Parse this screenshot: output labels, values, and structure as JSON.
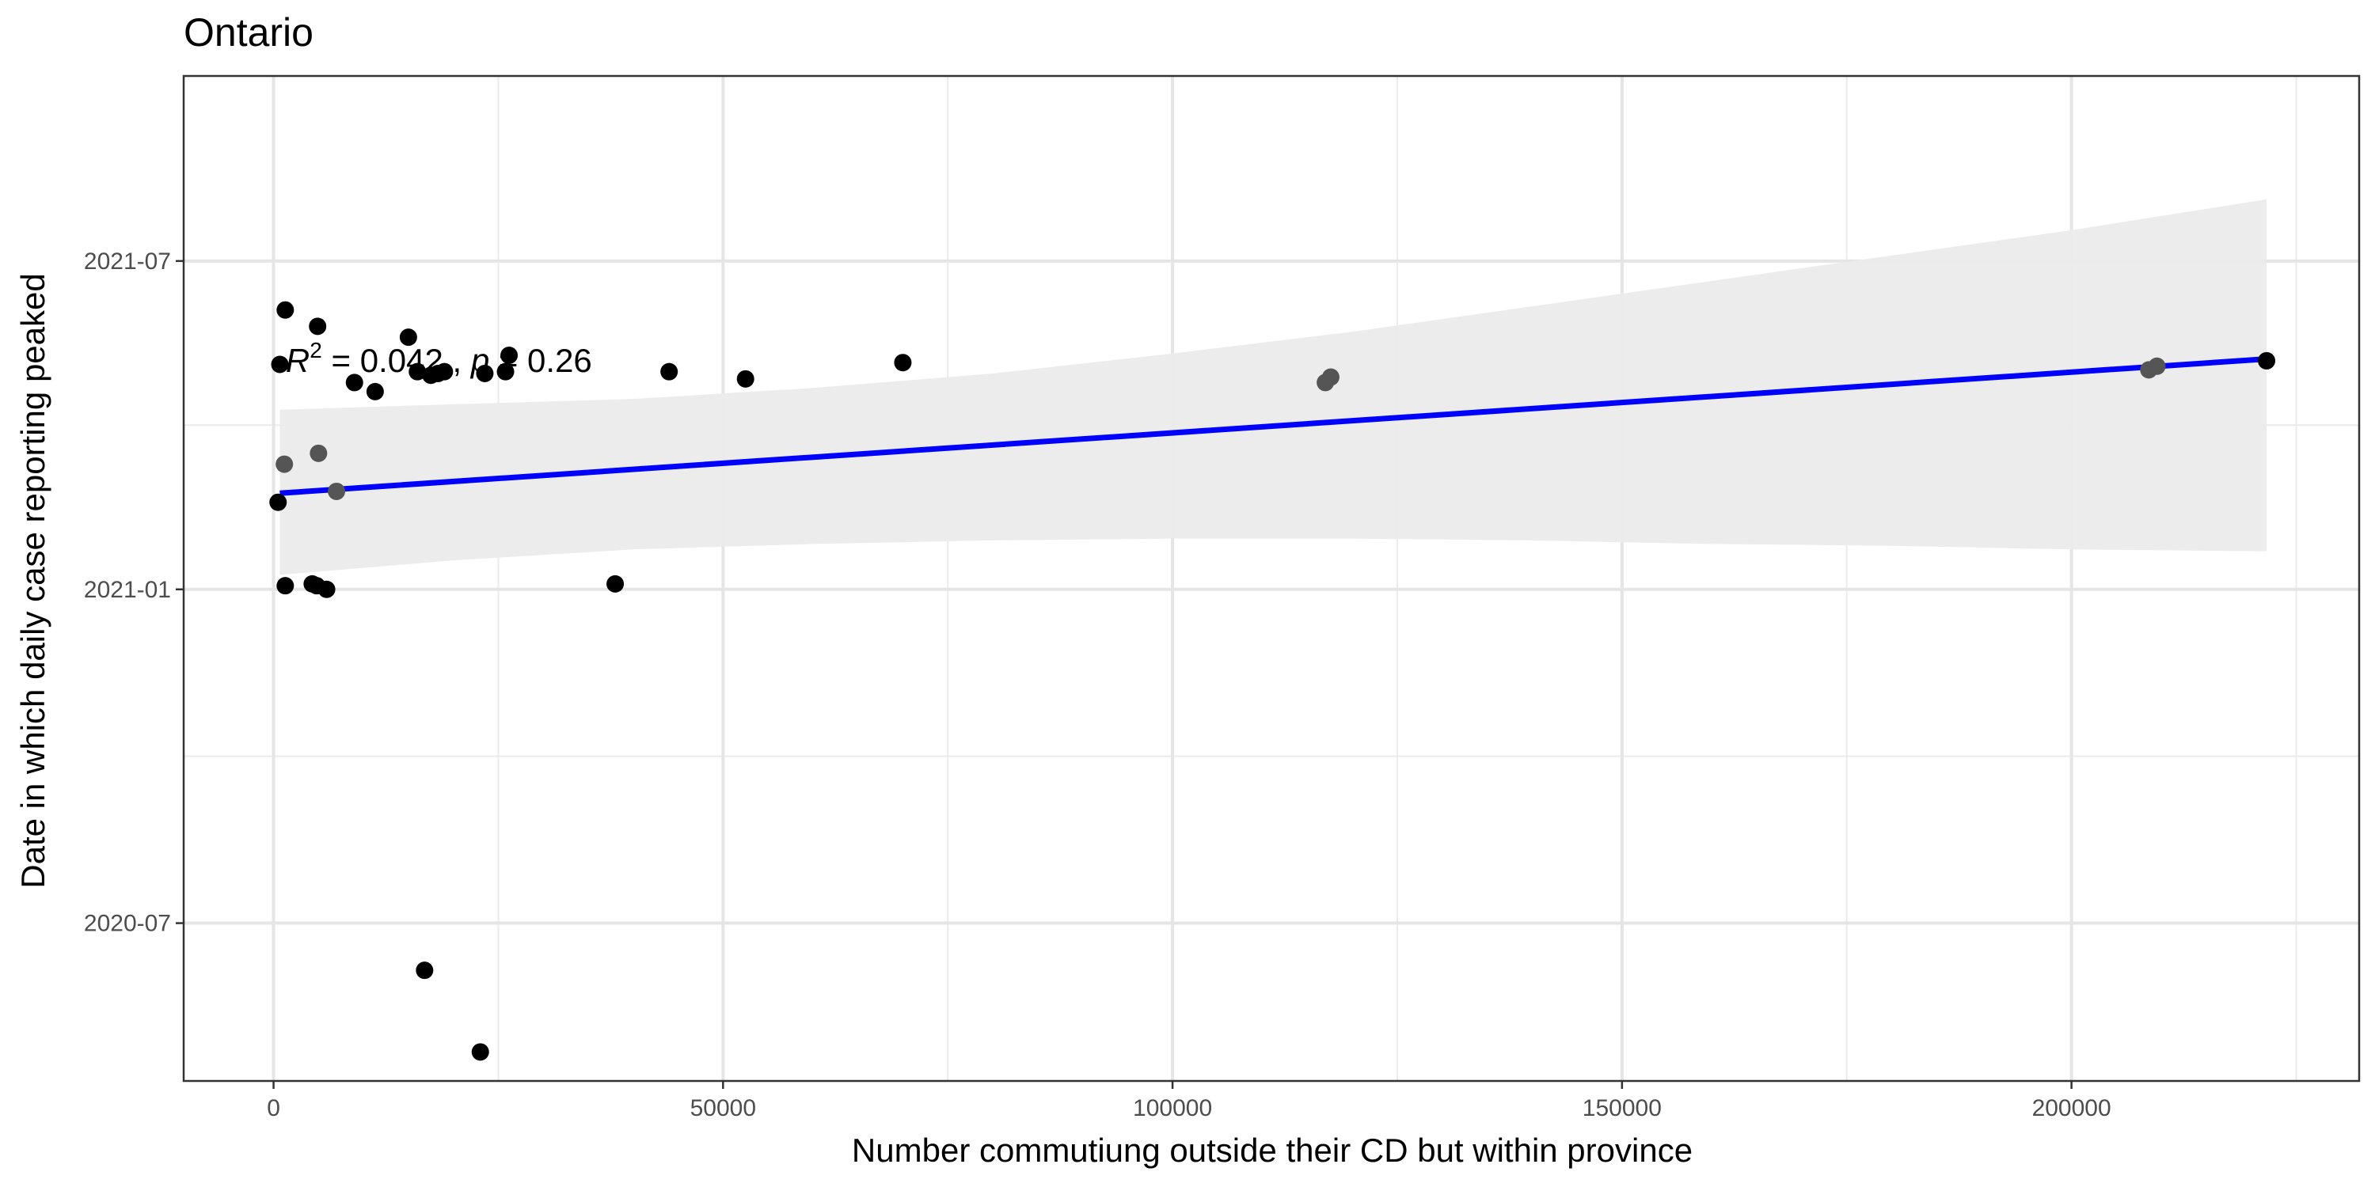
{
  "chart_data": {
    "type": "scatter",
    "title": "Ontario",
    "xlabel": "Number commutiung outside their CD but within province",
    "ylabel": "Date in which daily case reporting peaked",
    "x_range": [
      -10000,
      232000
    ],
    "y_range": [
      "2020-04-05",
      "2021-10-11"
    ],
    "x_ticks": [
      0,
      50000,
      100000,
      150000,
      200000
    ],
    "y_ticks": [
      "2020-07",
      "2021-01",
      "2021-07"
    ],
    "grid": true,
    "annotation": {
      "r2_label": "R",
      "r2_sup": "2",
      "r2_text": " = 0.042 , ",
      "p_label": "p",
      "p_text": " = 0.26",
      "x": 1000,
      "y": "2021-05-07"
    },
    "fit_line": {
      "color": "#0000ff",
      "x": [
        700,
        221700
      ],
      "y": [
        "2021-02-23",
        "2021-05-08"
      ]
    },
    "confidence_band": {
      "color": "#ebebeb",
      "x": [
        700,
        20000,
        40000,
        60000,
        80000,
        100000,
        120000,
        140000,
        160000,
        180000,
        200000,
        221700
      ],
      "upper": [
        "2021-04-10",
        "2021-04-13",
        "2021-04-16",
        "2021-04-22",
        "2021-04-30",
        "2021-05-11",
        "2021-05-23",
        "2021-06-06",
        "2021-06-20",
        "2021-07-04",
        "2021-07-18",
        "2021-08-04"
      ],
      "lower": [
        "2021-01-09",
        "2021-01-17",
        "2021-01-23",
        "2021-01-26",
        "2021-01-28",
        "2021-01-29",
        "2021-01-29",
        "2021-01-28",
        "2021-01-26",
        "2021-01-25",
        "2021-01-23",
        "2021-01-22"
      ]
    },
    "points": [
      {
        "x": 500,
        "y": "2021-02-18",
        "color": "#000000"
      },
      {
        "x": 700,
        "y": "2021-05-05",
        "color": "#000000"
      },
      {
        "x": 1200,
        "y": "2021-03-11",
        "color": "#555555"
      },
      {
        "x": 1300,
        "y": "2021-01-03",
        "color": "#000000"
      },
      {
        "x": 1300,
        "y": "2021-06-04",
        "color": "#000000"
      },
      {
        "x": 4300,
        "y": "2021-01-04",
        "color": "#000000"
      },
      {
        "x": 4800,
        "y": "2021-01-03",
        "color": "#000000"
      },
      {
        "x": 4900,
        "y": "2021-05-26",
        "color": "#000000"
      },
      {
        "x": 5000,
        "y": "2021-03-17",
        "color": "#555555"
      },
      {
        "x": 5900,
        "y": "2021-01-01",
        "color": "#000000"
      },
      {
        "x": 7000,
        "y": "2021-02-24",
        "color": "#555555"
      },
      {
        "x": 9000,
        "y": "2021-04-25",
        "color": "#000000"
      },
      {
        "x": 11300,
        "y": "2021-04-20",
        "color": "#000000"
      },
      {
        "x": 15000,
        "y": "2021-05-20",
        "color": "#000000"
      },
      {
        "x": 16000,
        "y": "2021-05-01",
        "color": "#000000"
      },
      {
        "x": 16800,
        "y": "2020-06-05",
        "color": "#000000"
      },
      {
        "x": 17500,
        "y": "2021-04-29",
        "color": "#000000"
      },
      {
        "x": 18300,
        "y": "2021-04-30",
        "color": "#000000"
      },
      {
        "x": 19000,
        "y": "2021-05-01",
        "color": "#000000"
      },
      {
        "x": 23000,
        "y": "2020-04-21",
        "color": "#000000"
      },
      {
        "x": 23500,
        "y": "2021-04-30",
        "color": "#000000"
      },
      {
        "x": 25800,
        "y": "2021-05-01",
        "color": "#000000"
      },
      {
        "x": 26200,
        "y": "2021-05-10",
        "color": "#000000"
      },
      {
        "x": 38000,
        "y": "2021-01-04",
        "color": "#000000"
      },
      {
        "x": 44000,
        "y": "2021-05-01",
        "color": "#000000"
      },
      {
        "x": 52500,
        "y": "2021-04-27",
        "color": "#000000"
      },
      {
        "x": 70000,
        "y": "2021-05-06",
        "color": "#000000"
      },
      {
        "x": 117000,
        "y": "2021-04-25",
        "color": "#555555"
      },
      {
        "x": 117600,
        "y": "2021-04-28",
        "color": "#555555"
      },
      {
        "x": 208600,
        "y": "2021-05-02",
        "color": "#555555"
      },
      {
        "x": 209500,
        "y": "2021-05-04",
        "color": "#555555"
      },
      {
        "x": 221700,
        "y": "2021-05-07",
        "color": "#000000"
      }
    ]
  }
}
